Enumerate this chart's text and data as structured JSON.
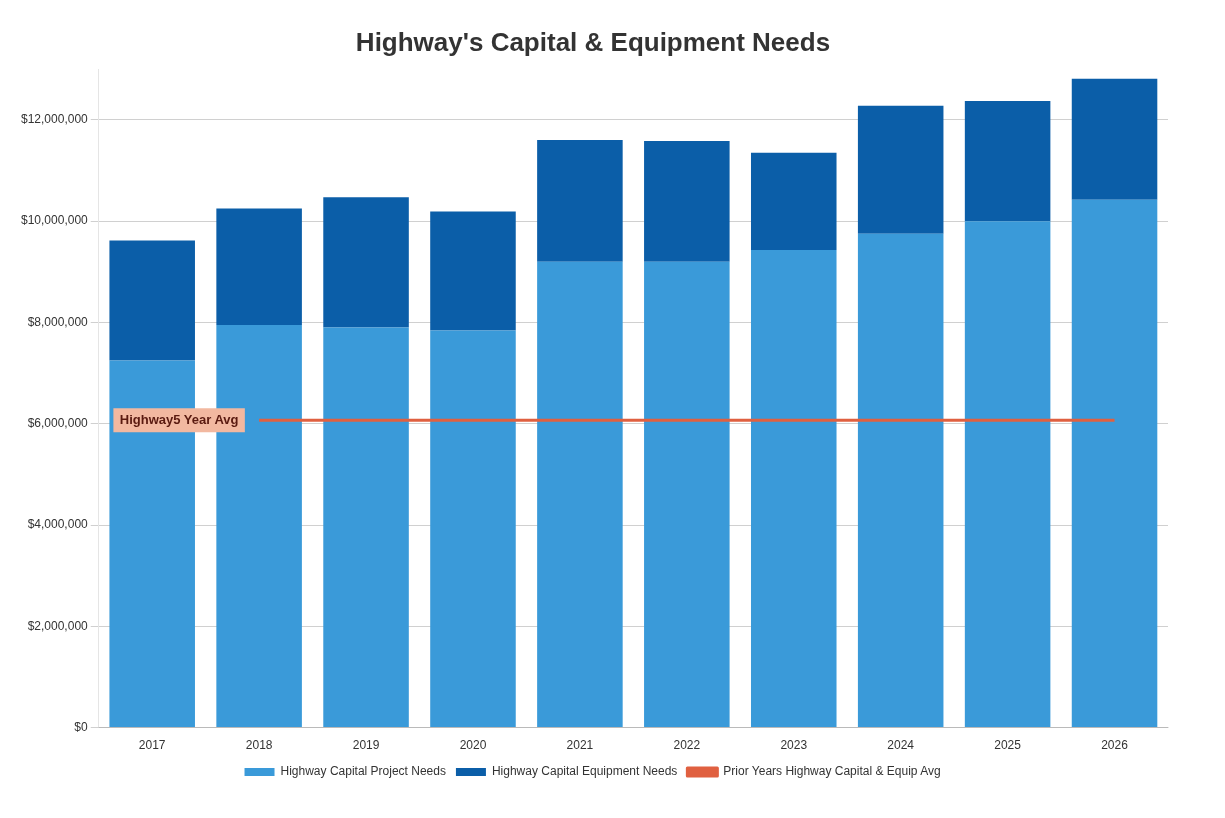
{
  "chart_data": {
    "type": "bar",
    "stacked": true,
    "title": "Highway's Capital & Equipment Needs",
    "categories": [
      "2017",
      "2018",
      "2019",
      "2020",
      "2021",
      "2022",
      "2023",
      "2024",
      "2025",
      "2026"
    ],
    "series": [
      {
        "name": "Highway Capital Project Needs",
        "color": "#3a9ad9",
        "values": [
          7250000,
          7950000,
          7900000,
          7840000,
          9200000,
          9200000,
          9430000,
          9750000,
          10000000,
          10420000
        ]
      },
      {
        "name": "Highway Capital Equipment Needs",
        "color": "#0b5ea8",
        "values": [
          2370000,
          2300000,
          2570000,
          2350000,
          2400000,
          2380000,
          1920000,
          2530000,
          2370000,
          2390000
        ]
      },
      {
        "name": "Prior Years Highway Capital & Equip Avg",
        "type": "line",
        "color": "#e06040",
        "values": [
          null,
          6070000,
          6070000,
          6070000,
          6070000,
          6070000,
          6070000,
          6070000,
          6070000,
          6070000
        ]
      }
    ],
    "ylim": [
      0,
      13000000
    ],
    "yticks": [
      {
        "value": 0,
        "label": "$0"
      },
      {
        "value": 2000000,
        "label": "$2,000,000"
      },
      {
        "value": 4000000,
        "label": "$4,000,000"
      },
      {
        "value": 6000000,
        "label": "$6,000,000"
      },
      {
        "value": 8000000,
        "label": "$8,000,000"
      },
      {
        "value": 10000000,
        "label": "$10,000,000"
      },
      {
        "value": 12000000,
        "label": "$12,000,000"
      }
    ],
    "grid": "y",
    "legend": "bottom",
    "marker": "none",
    "annotations": [
      "Highway5 Year Avg"
    ]
  }
}
